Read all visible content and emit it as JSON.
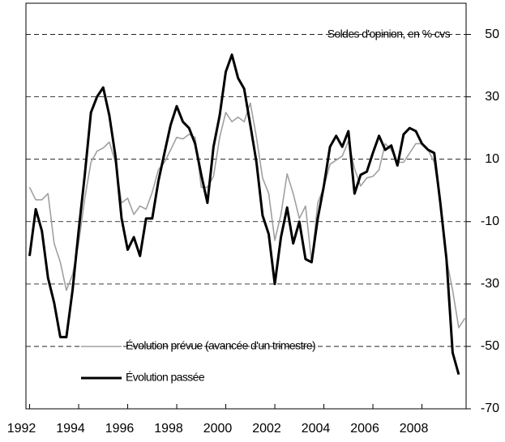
{
  "chart_data": {
    "type": "line",
    "annotation": "Soldes d'opinion, en % cvs",
    "x": [
      1992,
      1992.25,
      1992.5,
      1992.75,
      1993,
      1993.25,
      1993.5,
      1993.75,
      1994,
      1994.25,
      1994.5,
      1994.75,
      1995,
      1995.25,
      1995.5,
      1995.75,
      1996,
      1996.25,
      1996.5,
      1996.75,
      1997,
      1997.25,
      1997.5,
      1997.75,
      1998,
      1998.25,
      1998.5,
      1998.75,
      1999,
      1999.25,
      1999.5,
      1999.75,
      2000,
      2000.25,
      2000.5,
      2000.75,
      2001,
      2001.25,
      2001.5,
      2001.75,
      2002,
      2002.25,
      2002.5,
      2002.75,
      2003,
      2003.25,
      2003.5,
      2003.75,
      2004,
      2004.25,
      2004.5,
      2004.75,
      2005,
      2005.25,
      2005.5,
      2005.75,
      2006,
      2006.25,
      2006.5,
      2006.75,
      2007,
      2007.25,
      2007.5,
      2007.75,
      2008,
      2008.25,
      2008.5,
      2008.75,
      2009,
      2009.25,
      2009.5,
      2009.75
    ],
    "series": [
      {
        "name": "Évolution prévue (avancée d'un trimestre)",
        "color": "#a0a0a0",
        "values": [
          1,
          -3,
          -3,
          -1,
          -17,
          -23,
          -32,
          -27,
          -17,
          -2.5,
          9,
          12.6,
          13.6,
          15.5,
          9,
          -4,
          -2.5,
          -7.7,
          -5,
          -6,
          -0.6,
          6.6,
          9,
          13,
          17,
          16.5,
          18,
          17,
          1,
          1,
          4.5,
          17,
          25,
          22,
          23.5,
          22,
          28,
          17,
          4,
          -1,
          -16,
          -7.7,
          5.3,
          -1,
          -9,
          -5,
          -23,
          -4,
          1,
          8.4,
          9.7,
          11,
          15.7,
          7,
          1.4,
          4,
          4.5,
          6.6,
          15,
          13,
          9,
          9,
          12,
          15,
          15,
          13,
          9,
          -4,
          -22,
          -32,
          -44,
          -41
        ]
      },
      {
        "name": "Évolution passée",
        "color": "#000000",
        "values": [
          -21,
          -6,
          -13,
          -28,
          -36,
          -47,
          -47,
          -32,
          -13,
          5,
          25,
          30,
          33,
          24,
          11,
          -9,
          -19,
          -15,
          -21,
          -9,
          -9,
          3,
          12,
          21,
          27,
          22,
          20,
          15,
          5,
          -4,
          14,
          24,
          38,
          43.5,
          36,
          32.6,
          21,
          9,
          -8,
          -14,
          -30,
          -15,
          -5.5,
          -17,
          -10,
          -22,
          -23,
          -9,
          1.4,
          14,
          17.5,
          14,
          19,
          -1,
          5,
          6,
          12,
          17.5,
          13,
          14.4,
          8,
          18,
          20,
          19,
          15,
          13,
          12,
          -4,
          -22,
          -52,
          -59,
          null
        ]
      }
    ],
    "xlim": [
      1991.85,
      2009.8
    ],
    "xticks": [
      1992,
      1994,
      1996,
      1998,
      2000,
      2002,
      2004,
      2006,
      2008
    ],
    "ylim": [
      -70,
      60
    ],
    "yticks": [
      -70,
      -50,
      -30,
      -10,
      10,
      30,
      50
    ],
    "grid": true
  }
}
